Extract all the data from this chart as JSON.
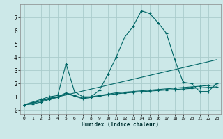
{
  "xlabel": "Humidex (Indice chaleur)",
  "background_color": "#cce8e8",
  "grid_color": "#aacccc",
  "line_color": "#006666",
  "xlim": [
    -0.5,
    23.5
  ],
  "ylim": [
    -0.3,
    8.0
  ],
  "xticks": [
    0,
    1,
    2,
    3,
    4,
    5,
    6,
    7,
    8,
    9,
    10,
    11,
    12,
    13,
    14,
    15,
    16,
    17,
    18,
    19,
    20,
    21,
    22,
    23
  ],
  "yticks": [
    0,
    1,
    2,
    3,
    4,
    5,
    6,
    7
  ],
  "series": [
    {
      "x": [
        0,
        1,
        2,
        3,
        4,
        5,
        6,
        7,
        8,
        9,
        10,
        11,
        12,
        13,
        14,
        15,
        16,
        17,
        18,
        19,
        20,
        21,
        22,
        23
      ],
      "y": [
        0.4,
        0.6,
        0.8,
        1.0,
        1.1,
        3.5,
        1.4,
        1.0,
        1.0,
        1.5,
        2.7,
        4.0,
        5.5,
        6.3,
        7.5,
        7.3,
        6.6,
        5.8,
        3.8,
        2.1,
        2.0,
        1.4,
        1.4,
        2.0
      ]
    },
    {
      "x": [
        0,
        23
      ],
      "y": [
        0.4,
        3.8
      ]
    },
    {
      "x": [
        0,
        1,
        2,
        3,
        4,
        5,
        6,
        7,
        8,
        9,
        10,
        11,
        12,
        13,
        14,
        15,
        16,
        17,
        18,
        19,
        20,
        21,
        22,
        23
      ],
      "y": [
        0.4,
        0.5,
        0.7,
        0.9,
        1.0,
        1.3,
        1.1,
        0.9,
        1.0,
        1.1,
        1.2,
        1.3,
        1.35,
        1.4,
        1.45,
        1.5,
        1.55,
        1.6,
        1.65,
        1.7,
        1.75,
        1.8,
        1.85,
        1.9
      ]
    },
    {
      "x": [
        0,
        1,
        2,
        3,
        4,
        5,
        6,
        7,
        8,
        9,
        10,
        11,
        12,
        13,
        14,
        15,
        16,
        17,
        18,
        19,
        20,
        21,
        22,
        23
      ],
      "y": [
        0.4,
        0.45,
        0.6,
        0.8,
        0.95,
        1.25,
        1.05,
        0.85,
        0.95,
        1.05,
        1.15,
        1.22,
        1.28,
        1.33,
        1.38,
        1.43,
        1.47,
        1.51,
        1.55,
        1.59,
        1.63,
        1.67,
        1.71,
        1.75
      ]
    }
  ]
}
